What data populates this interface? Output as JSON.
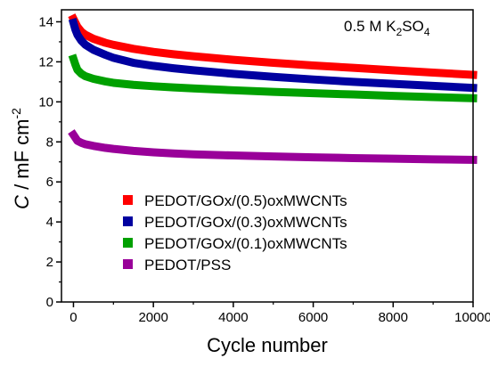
{
  "chart_data": {
    "type": "line",
    "xlabel": "Cycle number",
    "ylabel_italic": "C",
    "ylabel_rest": " / mF cm",
    "ylabel_sup": "-2",
    "xlim": [
      -300,
      10000
    ],
    "ylim": [
      0,
      14.6
    ],
    "x_ticks": [
      0,
      2000,
      4000,
      6000,
      8000,
      10000
    ],
    "x_tick_labels": [
      "0",
      "2000",
      "4000",
      "6000",
      "8000",
      "10000"
    ],
    "y_ticks": [
      0,
      2,
      4,
      6,
      8,
      10,
      12,
      14
    ],
    "y_tick_labels": [
      "0",
      "2",
      "4",
      "6",
      "8",
      "10",
      "12",
      "14"
    ],
    "annotation": {
      "prefix": "0.5 M K",
      "sub1": "2",
      "mid": "SO",
      "sub2": "4"
    },
    "legend_position": "lower-left",
    "grid": false,
    "series": [
      {
        "name": "PEDOT/GOx/(0.5)oxMWCNTs",
        "color": "#ff0000",
        "x": [
          0,
          50,
          100,
          200,
          300,
          500,
          800,
          1000,
          1500,
          2000,
          2500,
          3000,
          4000,
          5000,
          6000,
          7000,
          8000,
          9000,
          10000
        ],
        "y": [
          14.15,
          13.95,
          13.75,
          13.5,
          13.35,
          13.15,
          12.95,
          12.85,
          12.65,
          12.5,
          12.38,
          12.28,
          12.1,
          11.95,
          11.82,
          11.7,
          11.58,
          11.46,
          11.35
        ]
      },
      {
        "name": "PEDOT/GOx/(0.3)oxMWCNTs",
        "color": "#0000a0",
        "x": [
          0,
          50,
          100,
          200,
          300,
          500,
          800,
          1000,
          1500,
          2000,
          2500,
          3000,
          4000,
          5000,
          6000,
          7000,
          8000,
          9000,
          10000
        ],
        "y": [
          13.95,
          13.6,
          13.35,
          13.05,
          12.85,
          12.6,
          12.35,
          12.2,
          11.95,
          11.8,
          11.68,
          11.58,
          11.4,
          11.25,
          11.12,
          11.0,
          10.9,
          10.8,
          10.7
        ]
      },
      {
        "name": "PEDOT/GOx/(0.1)oxMWCNTs",
        "color": "#00a000",
        "x": [
          0,
          50,
          100,
          200,
          300,
          500,
          800,
          1000,
          1500,
          2000,
          2500,
          3000,
          4000,
          5000,
          6000,
          7000,
          8000,
          9000,
          10000
        ],
        "y": [
          12.15,
          11.85,
          11.6,
          11.4,
          11.28,
          11.15,
          11.02,
          10.95,
          10.85,
          10.78,
          10.72,
          10.67,
          10.58,
          10.5,
          10.43,
          10.37,
          10.3,
          10.24,
          10.18
        ]
      },
      {
        "name": "PEDOT/PSS",
        "color": "#990099",
        "x": [
          0,
          50,
          100,
          200,
          300,
          500,
          800,
          1000,
          1500,
          2000,
          2500,
          3000,
          4000,
          5000,
          6000,
          7000,
          8000,
          9000,
          10000
        ],
        "y": [
          8.35,
          8.2,
          8.05,
          7.95,
          7.88,
          7.8,
          7.7,
          7.65,
          7.55,
          7.48,
          7.42,
          7.38,
          7.32,
          7.27,
          7.23,
          7.19,
          7.16,
          7.13,
          7.1
        ]
      }
    ]
  }
}
